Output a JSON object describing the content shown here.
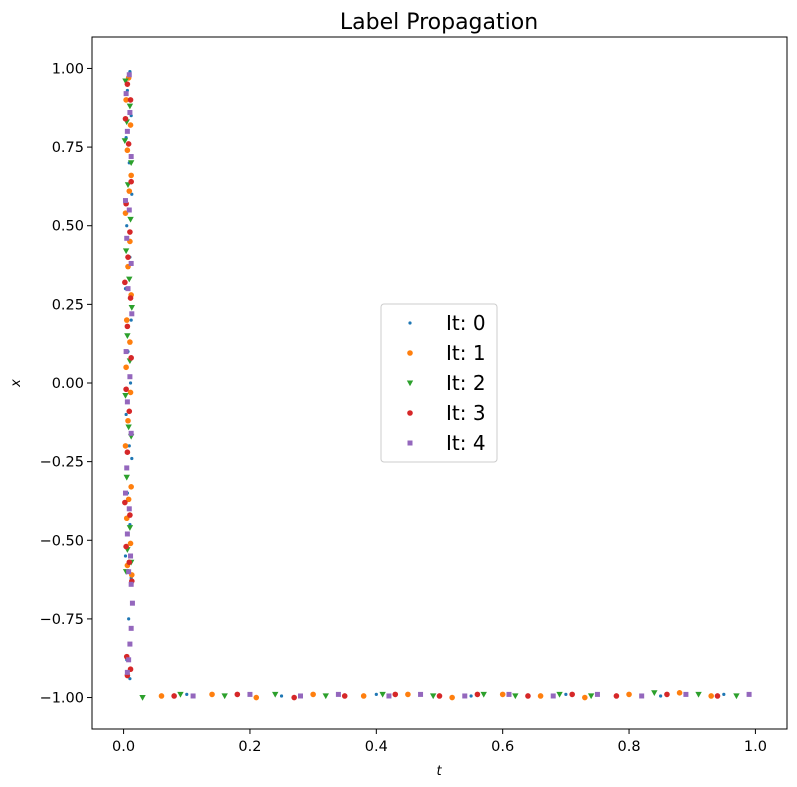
{
  "chart_data": {
    "type": "scatter",
    "title": "Label Propagation",
    "xlabel": "t",
    "ylabel": "x",
    "xlim": [
      -0.05,
      1.05
    ],
    "ylim": [
      -1.1,
      1.1
    ],
    "xticks": [
      0.0,
      0.2,
      0.4,
      0.6,
      0.8,
      1.0
    ],
    "xtick_labels": [
      "0.0",
      "0.2",
      "0.4",
      "0.6",
      "0.8",
      "1.0"
    ],
    "yticks": [
      1.0,
      0.75,
      0.5,
      0.25,
      0.0,
      -0.25,
      -0.5,
      -0.75,
      -1.0
    ],
    "ytick_labels": [
      "1.00",
      "0.75",
      "0.50",
      "0.25",
      "0.00",
      "−0.25",
      "−0.50",
      "−0.75",
      "−1.00"
    ],
    "grid": false,
    "legend_position": "center-right",
    "series": [
      {
        "name": "It: 0",
        "color": "#1f77b4",
        "marker": "dot-small",
        "points": [
          [
            0.01,
            0.99
          ],
          [
            0.006,
            0.93
          ],
          [
            0.012,
            0.85
          ],
          [
            0.004,
            0.78
          ],
          [
            0.009,
            0.7
          ],
          [
            0.013,
            0.6
          ],
          [
            0.005,
            0.5
          ],
          [
            0.01,
            0.4
          ],
          [
            0.003,
            0.3
          ],
          [
            0.012,
            0.2
          ],
          [
            0.007,
            0.1
          ],
          [
            0.011,
            0.0
          ],
          [
            0.004,
            -0.1
          ],
          [
            0.009,
            -0.2
          ],
          [
            0.013,
            -0.24
          ],
          [
            0.006,
            -0.35
          ],
          [
            0.01,
            -0.45
          ],
          [
            0.003,
            -0.55
          ],
          [
            0.012,
            -0.62
          ],
          [
            0.008,
            -0.75
          ],
          [
            0.005,
            -0.88
          ],
          [
            0.01,
            -0.94
          ],
          [
            0.1,
            -0.99
          ],
          [
            0.25,
            -0.995
          ],
          [
            0.4,
            -0.99
          ],
          [
            0.55,
            -0.995
          ],
          [
            0.7,
            -0.99
          ],
          [
            0.85,
            -0.995
          ],
          [
            0.95,
            -0.99
          ]
        ]
      },
      {
        "name": "It: 1",
        "color": "#ff7f0e",
        "marker": "dot",
        "points": [
          [
            0.008,
            0.97
          ],
          [
            0.004,
            0.9
          ],
          [
            0.011,
            0.82
          ],
          [
            0.006,
            0.74
          ],
          [
            0.012,
            0.66
          ],
          [
            0.009,
            0.61
          ],
          [
            0.003,
            0.54
          ],
          [
            0.01,
            0.45
          ],
          [
            0.007,
            0.37
          ],
          [
            0.012,
            0.28
          ],
          [
            0.005,
            0.2
          ],
          [
            0.01,
            0.13
          ],
          [
            0.004,
            0.05
          ],
          [
            0.011,
            -0.03
          ],
          [
            0.007,
            -0.12
          ],
          [
            0.003,
            -0.2
          ],
          [
            0.012,
            -0.33
          ],
          [
            0.008,
            -0.37
          ],
          [
            0.005,
            -0.43
          ],
          [
            0.011,
            -0.51
          ],
          [
            0.006,
            -0.58
          ],
          [
            0.013,
            -0.61
          ],
          [
            0.06,
            -0.995
          ],
          [
            0.14,
            -0.99
          ],
          [
            0.21,
            -1.0
          ],
          [
            0.3,
            -0.99
          ],
          [
            0.38,
            -0.995
          ],
          [
            0.45,
            -0.99
          ],
          [
            0.52,
            -1.0
          ],
          [
            0.6,
            -0.99
          ],
          [
            0.66,
            -0.995
          ],
          [
            0.73,
            -1.0
          ],
          [
            0.8,
            -0.99
          ],
          [
            0.88,
            -0.985
          ],
          [
            0.93,
            -0.995
          ]
        ]
      },
      {
        "name": "It: 2",
        "color": "#2ca02c",
        "marker": "triangle-down",
        "points": [
          [
            0.003,
            0.96
          ],
          [
            0.01,
            0.88
          ],
          [
            0.005,
            0.83
          ],
          [
            0.002,
            0.77
          ],
          [
            0.012,
            0.7
          ],
          [
            0.007,
            0.63
          ],
          [
            0.011,
            0.52
          ],
          [
            0.004,
            0.42
          ],
          [
            0.009,
            0.33
          ],
          [
            0.013,
            0.24
          ],
          [
            0.006,
            0.15
          ],
          [
            0.01,
            0.07
          ],
          [
            0.003,
            -0.04
          ],
          [
            0.008,
            -0.14
          ],
          [
            0.012,
            -0.17
          ],
          [
            0.005,
            -0.3
          ],
          [
            0.01,
            -0.46
          ],
          [
            0.006,
            -0.53
          ],
          [
            0.012,
            -0.57
          ],
          [
            0.004,
            -0.6
          ],
          [
            0.03,
            -1.0
          ],
          [
            0.09,
            -0.99
          ],
          [
            0.16,
            -0.995
          ],
          [
            0.24,
            -0.99
          ],
          [
            0.32,
            -0.995
          ],
          [
            0.41,
            -0.99
          ],
          [
            0.49,
            -0.995
          ],
          [
            0.57,
            -0.99
          ],
          [
            0.62,
            -0.995
          ],
          [
            0.69,
            -0.99
          ],
          [
            0.74,
            -0.995
          ],
          [
            0.84,
            -0.985
          ],
          [
            0.91,
            -0.99
          ],
          [
            0.97,
            -0.995
          ]
        ]
      },
      {
        "name": "It: 3",
        "color": "#d62728",
        "marker": "dot",
        "points": [
          [
            0.006,
            0.95
          ],
          [
            0.011,
            0.9
          ],
          [
            0.003,
            0.84
          ],
          [
            0.008,
            0.76
          ],
          [
            0.012,
            0.64
          ],
          [
            0.004,
            0.57
          ],
          [
            0.01,
            0.48
          ],
          [
            0.007,
            0.4
          ],
          [
            0.002,
            0.32
          ],
          [
            0.011,
            0.27
          ],
          [
            0.006,
            0.18
          ],
          [
            0.012,
            0.08
          ],
          [
            0.004,
            -0.02
          ],
          [
            0.009,
            -0.09
          ],
          [
            0.006,
            -0.22
          ],
          [
            0.002,
            -0.38
          ],
          [
            0.01,
            -0.42
          ],
          [
            0.004,
            -0.52
          ],
          [
            0.009,
            -0.57
          ],
          [
            0.013,
            -0.63
          ],
          [
            0.005,
            -0.87
          ],
          [
            0.011,
            -0.91
          ],
          [
            0.006,
            -0.93
          ],
          [
            0.08,
            -0.995
          ],
          [
            0.18,
            -0.99
          ],
          [
            0.27,
            -1.0
          ],
          [
            0.35,
            -0.995
          ],
          [
            0.43,
            -0.99
          ],
          [
            0.5,
            -0.995
          ],
          [
            0.56,
            -0.99
          ],
          [
            0.64,
            -0.995
          ],
          [
            0.71,
            -0.99
          ],
          [
            0.78,
            -0.995
          ],
          [
            0.86,
            -0.99
          ],
          [
            0.94,
            -0.995
          ]
        ]
      },
      {
        "name": "It: 4",
        "color": "#9467bd",
        "marker": "square",
        "points": [
          [
            0.009,
            0.98
          ],
          [
            0.004,
            0.92
          ],
          [
            0.01,
            0.86
          ],
          [
            0.006,
            0.8
          ],
          [
            0.012,
            0.72
          ],
          [
            0.003,
            0.58
          ],
          [
            0.009,
            0.55
          ],
          [
            0.005,
            0.46
          ],
          [
            0.012,
            0.38
          ],
          [
            0.007,
            0.3
          ],
          [
            0.013,
            0.22
          ],
          [
            0.004,
            0.1
          ],
          [
            0.01,
            0.02
          ],
          [
            0.006,
            -0.06
          ],
          [
            0.012,
            -0.16
          ],
          [
            0.005,
            -0.27
          ],
          [
            0.003,
            -0.35
          ],
          [
            0.009,
            -0.4
          ],
          [
            0.006,
            -0.48
          ],
          [
            0.011,
            -0.55
          ],
          [
            0.008,
            -0.6
          ],
          [
            0.012,
            -0.64
          ],
          [
            0.014,
            -0.7
          ],
          [
            0.012,
            -0.78
          ],
          [
            0.01,
            -0.83
          ],
          [
            0.008,
            -0.88
          ],
          [
            0.006,
            -0.92
          ],
          [
            0.11,
            -0.995
          ],
          [
            0.2,
            -0.99
          ],
          [
            0.28,
            -0.995
          ],
          [
            0.34,
            -0.99
          ],
          [
            0.42,
            -0.995
          ],
          [
            0.47,
            -0.99
          ],
          [
            0.54,
            -0.995
          ],
          [
            0.61,
            -0.99
          ],
          [
            0.68,
            -0.995
          ],
          [
            0.75,
            -0.99
          ],
          [
            0.82,
            -0.995
          ],
          [
            0.89,
            -0.99
          ],
          [
            0.99,
            -0.99
          ]
        ]
      }
    ]
  }
}
